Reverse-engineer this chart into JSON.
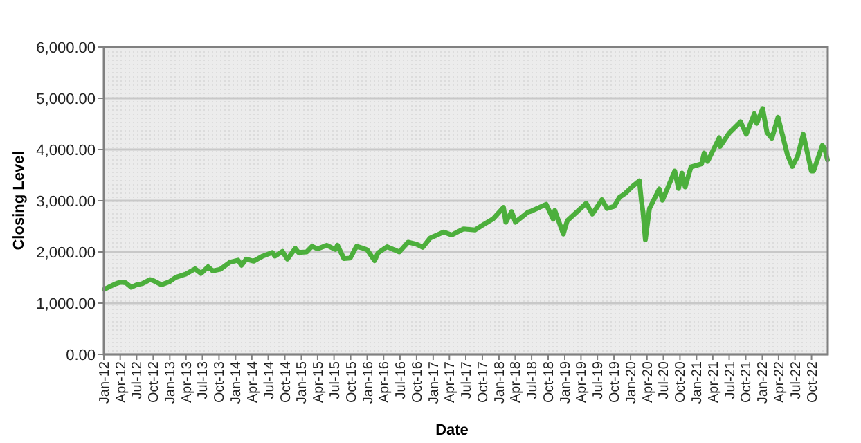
{
  "chart_data": {
    "type": "line",
    "xlabel": "Date",
    "ylabel": "Closing Level",
    "ylim": [
      0,
      6000
    ],
    "yticks": [
      {
        "value": 0,
        "label": "0.00"
      },
      {
        "value": 1000,
        "label": "1,000.00"
      },
      {
        "value": 2000,
        "label": "2,000.00"
      },
      {
        "value": 3000,
        "label": "3,000.00"
      },
      {
        "value": 4000,
        "label": "4,000.00"
      },
      {
        "value": 5000,
        "label": "5,000.00"
      },
      {
        "value": 6000,
        "label": "6,000.00"
      }
    ],
    "xlim": [
      "2012-01-01",
      "2022-12-30"
    ],
    "xticks": [
      {
        "value": "2012-01-01",
        "label": "Jan-12"
      },
      {
        "value": "2012-04-01",
        "label": "Apr-12"
      },
      {
        "value": "2012-07-01",
        "label": "Jul-12"
      },
      {
        "value": "2012-10-01",
        "label": "Oct-12"
      },
      {
        "value": "2013-01-01",
        "label": "Jan-13"
      },
      {
        "value": "2013-04-01",
        "label": "Apr-13"
      },
      {
        "value": "2013-07-01",
        "label": "Jul-13"
      },
      {
        "value": "2013-10-01",
        "label": "Oct-13"
      },
      {
        "value": "2014-01-01",
        "label": "Jan-14"
      },
      {
        "value": "2014-04-01",
        "label": "Apr-14"
      },
      {
        "value": "2014-07-01",
        "label": "Jul-14"
      },
      {
        "value": "2014-10-01",
        "label": "Oct-14"
      },
      {
        "value": "2015-01-01",
        "label": "Jan-15"
      },
      {
        "value": "2015-04-01",
        "label": "Apr-15"
      },
      {
        "value": "2015-07-01",
        "label": "Jul-15"
      },
      {
        "value": "2015-10-01",
        "label": "Oct-15"
      },
      {
        "value": "2016-01-01",
        "label": "Jan-16"
      },
      {
        "value": "2016-04-01",
        "label": "Apr-16"
      },
      {
        "value": "2016-07-01",
        "label": "Jul-16"
      },
      {
        "value": "2016-10-01",
        "label": "Oct-16"
      },
      {
        "value": "2017-01-01",
        "label": "Jan-17"
      },
      {
        "value": "2017-04-01",
        "label": "Apr-17"
      },
      {
        "value": "2017-07-01",
        "label": "Jul-17"
      },
      {
        "value": "2017-10-01",
        "label": "Oct-17"
      },
      {
        "value": "2018-01-01",
        "label": "Jan-18"
      },
      {
        "value": "2018-04-01",
        "label": "Apr-18"
      },
      {
        "value": "2018-07-01",
        "label": "Jul-18"
      },
      {
        "value": "2018-10-01",
        "label": "Oct-18"
      },
      {
        "value": "2019-01-01",
        "label": "Jan-19"
      },
      {
        "value": "2019-04-01",
        "label": "Apr-19"
      },
      {
        "value": "2019-07-01",
        "label": "Jul-19"
      },
      {
        "value": "2019-10-01",
        "label": "Oct-19"
      },
      {
        "value": "2020-01-01",
        "label": "Jan-20"
      },
      {
        "value": "2020-04-01",
        "label": "Apr-20"
      },
      {
        "value": "2020-07-01",
        "label": "Jul-20"
      },
      {
        "value": "2020-10-01",
        "label": "Oct-20"
      },
      {
        "value": "2021-01-01",
        "label": "Jan-21"
      },
      {
        "value": "2021-04-01",
        "label": "Apr-21"
      },
      {
        "value": "2021-07-01",
        "label": "Jul-21"
      },
      {
        "value": "2021-10-01",
        "label": "Oct-21"
      },
      {
        "value": "2022-01-01",
        "label": "Jan-22"
      },
      {
        "value": "2022-04-01",
        "label": "Apr-22"
      },
      {
        "value": "2022-07-01",
        "label": "Jul-22"
      },
      {
        "value": "2022-10-01",
        "label": "Oct-22"
      }
    ],
    "grid": "y",
    "marker": "none",
    "line_style": "solid",
    "x": [
      "2012-01-03",
      "2012-02-01",
      "2012-03-01",
      "2012-04-02",
      "2012-05-01",
      "2012-06-01",
      "2012-07-02",
      "2012-08-01",
      "2012-09-14",
      "2012-10-01",
      "2012-11-15",
      "2012-12-31",
      "2013-02-01",
      "2013-04-01",
      "2013-05-21",
      "2013-06-24",
      "2013-08-01",
      "2013-08-27",
      "2013-10-08",
      "2013-12-01",
      "2014-01-15",
      "2014-02-03",
      "2014-03-01",
      "2014-04-11",
      "2014-06-01",
      "2014-07-24",
      "2014-08-07",
      "2014-09-18",
      "2014-10-15",
      "2014-11-28",
      "2014-12-16",
      "2015-01-30",
      "2015-03-01",
      "2015-04-01",
      "2015-05-21",
      "2015-07-08",
      "2015-07-20",
      "2015-08-25",
      "2015-09-29",
      "2015-11-03",
      "2015-12-01",
      "2016-01-01",
      "2016-02-11",
      "2016-03-01",
      "2016-04-20",
      "2016-06-27",
      "2016-08-15",
      "2016-10-01",
      "2016-11-04",
      "2016-12-15",
      "2017-03-01",
      "2017-04-13",
      "2017-06-19",
      "2017-08-21",
      "2017-10-01",
      "2017-12-01",
      "2018-01-26",
      "2018-02-08",
      "2018-03-12",
      "2018-04-02",
      "2018-06-12",
      "2018-07-01",
      "2018-09-20",
      "2018-10-29",
      "2018-11-07",
      "2018-12-24",
      "2019-01-15",
      "2019-04-30",
      "2019-06-03",
      "2019-07-26",
      "2019-08-23",
      "2019-10-02",
      "2019-11-01",
      "2019-12-01",
      "2020-01-15",
      "2020-02-19",
      "2020-03-01",
      "2020-03-10",
      "2020-03-23",
      "2020-04-15",
      "2020-06-08",
      "2020-06-26",
      "2020-09-02",
      "2020-09-23",
      "2020-10-12",
      "2020-10-30",
      "2020-12-01",
      "2021-01-29",
      "2021-02-12",
      "2021-03-04",
      "2021-05-07",
      "2021-05-12",
      "2021-07-01",
      "2021-09-02",
      "2021-10-04",
      "2021-11-18",
      "2021-12-01",
      "2022-01-03",
      "2022-01-27",
      "2022-02-23",
      "2022-03-29",
      "2022-05-20",
      "2022-06-16",
      "2022-07-15",
      "2022-08-16",
      "2022-09-30",
      "2022-10-12",
      "2022-11-30",
      "2022-12-13",
      "2022-12-28"
    ],
    "series": [
      {
        "color": "#4caf3c",
        "values": [
          1270,
          1320,
          1370,
          1410,
          1400,
          1310,
          1360,
          1380,
          1460,
          1440,
          1360,
          1420,
          1500,
          1570,
          1670,
          1580,
          1710,
          1630,
          1660,
          1800,
          1840,
          1740,
          1860,
          1820,
          1920,
          1990,
          1920,
          2010,
          1860,
          2070,
          1990,
          2000,
          2110,
          2060,
          2130,
          2050,
          2130,
          1870,
          1880,
          2110,
          2080,
          2040,
          1830,
          1980,
          2100,
          2000,
          2190,
          2150,
          2090,
          2270,
          2390,
          2330,
          2450,
          2430,
          2520,
          2650,
          2870,
          2580,
          2790,
          2580,
          2780,
          2800,
          2930,
          2640,
          2810,
          2350,
          2610,
          2950,
          2740,
          3020,
          2850,
          2890,
          3070,
          3140,
          3290,
          3390,
          3000,
          2780,
          2240,
          2850,
          3230,
          3010,
          3580,
          3240,
          3540,
          3270,
          3660,
          3720,
          3930,
          3770,
          4230,
          4060,
          4320,
          4540,
          4300,
          4700,
          4510,
          4800,
          4330,
          4220,
          4630,
          3900,
          3670,
          3860,
          4300,
          3580,
          3580,
          4080,
          4020,
          3800
        ]
      }
    ]
  }
}
